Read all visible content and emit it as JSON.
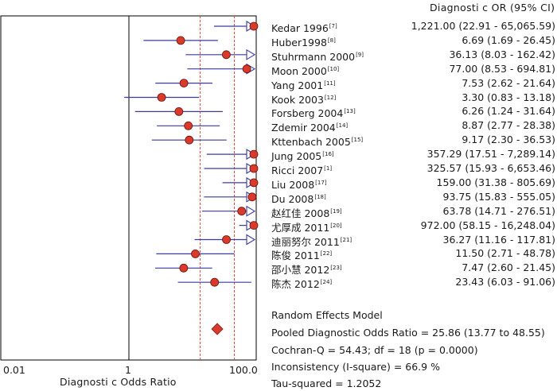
{
  "chart_data": {
    "type": "forest",
    "column_header": "Diagnosti c OR (95% CI)",
    "x_axis_label": "Diagnosti c Odds Ratio",
    "x_scale": "log",
    "xlim": [
      0.01,
      100.0
    ],
    "x_ticks": [
      "0.01",
      "1",
      "100.0"
    ],
    "studies": [
      {
        "name": "Kedar 1996",
        "ref": "[7]",
        "or": 1221.0,
        "lo": 22.91,
        "hi": 65065.59,
        "ci_text": "1,221.00 (22.91 - 65,065.59)"
      },
      {
        "name": "Huber1998",
        "ref": "[8]",
        "or": 6.69,
        "lo": 1.69,
        "hi": 26.45,
        "ci_text": "6.69 (1.69 - 26.45)"
      },
      {
        "name": "Stuhrmann 2000",
        "ref": "[9]",
        "or": 36.13,
        "lo": 8.03,
        "hi": 162.42,
        "ci_text": "36.13 (8.03 - 162.42)"
      },
      {
        "name": "Moon 2000",
        "ref": "[10]",
        "or": 77.0,
        "lo": 8.53,
        "hi": 694.81,
        "ci_text": "77.00 (8.53 - 694.81)"
      },
      {
        "name": "Yang 2001",
        "ref": "[11]",
        "or": 7.53,
        "lo": 2.62,
        "hi": 21.64,
        "ci_text": "7.53 (2.62 - 21.64)"
      },
      {
        "name": "Kook 2003",
        "ref": "[12]",
        "or": 3.3,
        "lo": 0.83,
        "hi": 13.18,
        "ci_text": "3.30 (0.83 - 13.18)"
      },
      {
        "name": "Forsberg 2004",
        "ref": "[13]",
        "or": 6.26,
        "lo": 1.24,
        "hi": 31.64,
        "ci_text": "6.26 (1.24 - 31.64)"
      },
      {
        "name": "Zdemir 2004",
        "ref": "[14]",
        "or": 8.87,
        "lo": 2.77,
        "hi": 28.38,
        "ci_text": "8.87 (2.77 - 28.38)"
      },
      {
        "name": "Kttenbach 2005",
        "ref": "[15]",
        "or": 9.17,
        "lo": 2.3,
        "hi": 36.53,
        "ci_text": "9.17 (2.30 - 36.53)"
      },
      {
        "name": "Jung 2005",
        "ref": "[16]",
        "or": 357.29,
        "lo": 17.51,
        "hi": 7289.14,
        "ci_text": "357.29 (17.51 - 7,289.14)"
      },
      {
        "name": "Ricci 2007",
        "ref": "[1]",
        "or": 325.57,
        "lo": 15.93,
        "hi": 6653.46,
        "ci_text": "325.57 (15.93 - 6,653.46)"
      },
      {
        "name": "Liu 2008",
        "ref": "[17]",
        "or": 159.0,
        "lo": 31.38,
        "hi": 805.69,
        "ci_text": "159.00 (31.38 - 805.69)"
      },
      {
        "name": "Du 2008",
        "ref": "[18]",
        "or": 93.75,
        "lo": 15.83,
        "hi": 555.05,
        "ci_text": "93.75 (15.83 - 555.05)"
      },
      {
        "name": "赵红佳 2008",
        "ref": "[19]",
        "or": 63.78,
        "lo": 14.71,
        "hi": 276.51,
        "ci_text": "63.78 (14.71 - 276.51)"
      },
      {
        "name": "尤厚成 2011",
        "ref": "[20]",
        "or": 972.0,
        "lo": 58.15,
        "hi": 16248.04,
        "ci_text": "972.00 (58.15 - 16,248.04)"
      },
      {
        "name": "迪丽努尔 2011",
        "ref": "[21]",
        "or": 36.27,
        "lo": 11.16,
        "hi": 117.81,
        "ci_text": "36.27 (11.16 - 117.81)"
      },
      {
        "name": "陈俊 2011",
        "ref": "[22]",
        "or": 11.5,
        "lo": 2.71,
        "hi": 48.78,
        "ci_text": "11.50 (2.71 - 48.78)"
      },
      {
        "name": "邵小慧 2012",
        "ref": "[23]",
        "or": 7.47,
        "lo": 2.6,
        "hi": 21.45,
        "ci_text": "7.47 (2.60 - 21.45)"
      },
      {
        "name": "陈杰 2012",
        "ref": "[24]",
        "or": 23.43,
        "lo": 6.03,
        "hi": 91.06,
        "ci_text": "23.43 (6.03 - 91.06)"
      }
    ],
    "pooled": {
      "or": 25.86,
      "lo": 13.77,
      "hi": 48.55
    },
    "summary": {
      "model": "Random Effects Model",
      "pooled_text": "Pooled Diagnostic Odds Ratio = 25.86 (13.77 to 48.55)",
      "cochran_text": "Cochran-Q = 54.43; df = 18 (p = 0.0000)",
      "inconsistency_text": "Inconsistency (I-square) = 66.9 %",
      "tau_text": "Tau-squared = 1.2052"
    },
    "colors": {
      "marker": "#d93a2b",
      "ci_line": "#3a3aa0",
      "pooled_ci": "#e0452f",
      "frame": "#000000"
    }
  }
}
